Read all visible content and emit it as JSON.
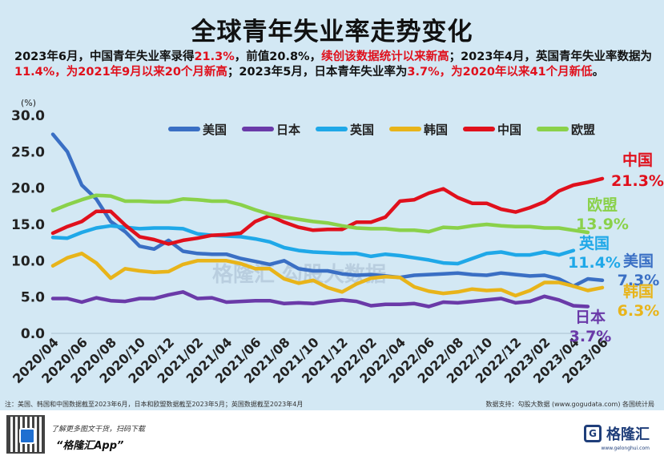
{
  "title": "全球青年失业率走势变化",
  "summary": {
    "p1": "2023年6月，中国青年失业率录得",
    "p2": "21.3%",
    "p3": "，前值20.8%，",
    "p4": "续创该数据统计以来新高",
    "p5": "；2023年4月，英国青年失业率数据为",
    "p6": "11.4%，为2021年9月以来20个月新高",
    "p7": "；2023年5月，日本青年失业率为",
    "p8": "3.7%，为2020年以来41个月新低",
    "p9": "。"
  },
  "footer": {
    "note": "注：美国、韩国和中国数据截至2023年6月，日本和欧盟数据截至2023年5月；英国数据截至2023年4月",
    "source": "数据支持：勾股大数据 (www.gogudata.com)   各国统计局",
    "cta1": "了解更多图文干货，扫码下载",
    "cta2": "“格隆汇App”",
    "brand_name": "格隆汇",
    "brand_mark": "G",
    "brand_url": "www.gelonghui.com"
  },
  "watermark": "格隆汇  勾股大数据",
  "chart_data": {
    "type": "line",
    "unit": "(%)",
    "ylim": [
      0,
      30
    ],
    "yticks": [
      "0.0",
      "5.0",
      "10.0",
      "15.0",
      "20.0",
      "25.0",
      "30.0"
    ],
    "x": [
      "2020/04",
      "2020/05",
      "2020/06",
      "2020/07",
      "2020/08",
      "2020/09",
      "2020/10",
      "2020/11",
      "2020/12",
      "2021/01",
      "2021/02",
      "2021/03",
      "2021/04",
      "2021/05",
      "2021/06",
      "2021/07",
      "2021/08",
      "2021/09",
      "2021/10",
      "2021/11",
      "2021/12",
      "2022/01",
      "2022/02",
      "2022/03",
      "2022/04",
      "2022/05",
      "2022/06",
      "2022/07",
      "2022/08",
      "2022/09",
      "2022/10",
      "2022/11",
      "2022/12",
      "2023/01",
      "2023/02",
      "2023/03",
      "2023/04",
      "2023/05",
      "2023/06"
    ],
    "xtick_labels": [
      "2020/04",
      "2020/06",
      "2020/08",
      "2020/10",
      "2020/12",
      "2021/02",
      "2021/04",
      "2021/06",
      "2021/08",
      "2021/10",
      "2021/12",
      "2022/02",
      "2022/04",
      "2022/06",
      "2022/08",
      "2022/10",
      "2022/12",
      "2023/02",
      "2023/04",
      "2023/06"
    ],
    "legend_placement": "top",
    "series": [
      {
        "name": "美国",
        "color": "#3a6fc4",
        "end_label": "7.3%",
        "values": [
          27.4,
          25.0,
          20.4,
          18.5,
          15.4,
          14.0,
          12.0,
          11.6,
          12.8,
          11.3,
          11.0,
          10.9,
          10.9,
          10.3,
          9.9,
          9.5,
          10.0,
          8.9,
          8.6,
          8.6,
          8.2,
          8.0,
          8.1,
          7.9,
          7.7,
          8.0,
          8.1,
          8.2,
          8.3,
          8.1,
          8.0,
          8.3,
          8.1,
          7.9,
          8.0,
          7.5,
          6.5,
          7.5,
          7.3
        ]
      },
      {
        "name": "日本",
        "color": "#6a3aa8",
        "end_label": "3.7%",
        "values": [
          4.8,
          4.8,
          4.3,
          4.9,
          4.5,
          4.4,
          4.8,
          4.8,
          5.3,
          5.7,
          4.8,
          4.9,
          4.3,
          4.4,
          4.5,
          4.5,
          4.1,
          4.2,
          4.1,
          4.4,
          4.6,
          4.4,
          3.8,
          4.0,
          4.0,
          4.1,
          3.7,
          4.3,
          4.2,
          4.4,
          4.6,
          4.8,
          4.2,
          4.4,
          5.1,
          4.6,
          3.8,
          3.7,
          null
        ]
      },
      {
        "name": "英国",
        "color": "#1fa8e8",
        "end_label": "11.4%",
        "values": [
          13.2,
          13.1,
          13.9,
          14.5,
          14.8,
          14.6,
          14.4,
          14.5,
          14.5,
          14.4,
          13.7,
          13.5,
          13.4,
          13.3,
          13.0,
          12.6,
          11.8,
          11.4,
          11.2,
          11.1,
          11.0,
          11.0,
          10.6,
          10.9,
          10.7,
          10.4,
          10.1,
          9.7,
          9.6,
          10.3,
          11.0,
          11.2,
          10.8,
          10.8,
          11.2,
          10.8,
          11.4,
          null,
          null
        ]
      },
      {
        "name": "韩国",
        "color": "#e8b41a",
        "end_label": "6.3%",
        "values": [
          9.3,
          10.4,
          11.0,
          9.7,
          7.6,
          8.9,
          8.6,
          8.4,
          8.5,
          9.5,
          10.0,
          10.0,
          10.0,
          9.6,
          8.9,
          8.9,
          7.5,
          6.9,
          7.3,
          6.3,
          5.7,
          6.8,
          7.6,
          7.8,
          7.7,
          6.4,
          5.8,
          5.5,
          5.7,
          6.1,
          5.9,
          6.0,
          5.2,
          5.9,
          7.0,
          7.0,
          6.5,
          5.9,
          6.3
        ]
      },
      {
        "name": "中国",
        "color": "#e0101c",
        "end_label": "21.3%",
        "values": [
          13.8,
          14.7,
          15.4,
          16.8,
          16.8,
          14.9,
          13.3,
          12.9,
          12.3,
          12.8,
          13.1,
          13.5,
          13.6,
          13.8,
          15.4,
          16.2,
          15.3,
          14.6,
          14.2,
          14.3,
          14.3,
          15.3,
          15.3,
          16.0,
          18.2,
          18.4,
          19.3,
          19.9,
          18.7,
          17.9,
          17.9,
          17.1,
          16.7,
          17.3,
          18.1,
          19.6,
          20.4,
          20.8,
          21.3
        ]
      },
      {
        "name": "欧盟",
        "color": "#8ad14a",
        "end_label": "13.9%",
        "values": [
          16.9,
          17.7,
          18.4,
          19.0,
          18.9,
          18.2,
          18.2,
          18.1,
          18.1,
          18.5,
          18.4,
          18.2,
          18.2,
          17.7,
          17.0,
          16.4,
          16.0,
          15.7,
          15.4,
          15.2,
          14.8,
          14.5,
          14.4,
          14.4,
          14.2,
          14.2,
          14.0,
          14.6,
          14.5,
          14.8,
          15.0,
          14.8,
          14.7,
          14.7,
          14.5,
          14.5,
          14.2,
          13.9,
          null
        ]
      }
    ]
  }
}
